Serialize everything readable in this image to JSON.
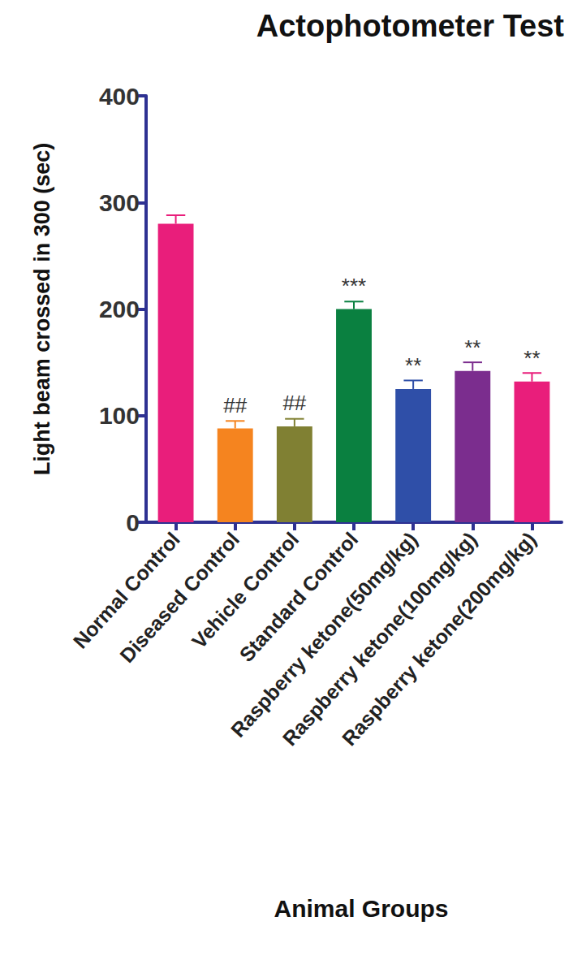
{
  "chart_data": {
    "type": "bar",
    "title": "Actophotometer Test",
    "x_label": "Animal Groups",
    "y_label": "Light beam crossed in 300 (sec)",
    "categories": [
      "Normal Control",
      "Diseased Control",
      "Vehicle Control",
      "Standard Control",
      "Raspberry ketone(50mg/kg)",
      "Raspberry ketone(100mg/kg)",
      "Raspberry ketone(200mg/kg)"
    ],
    "values": [
      280,
      88,
      90,
      200,
      125,
      142,
      132
    ],
    "errors": [
      8,
      7,
      7,
      7,
      8,
      8,
      8
    ],
    "annotations": [
      null,
      "##",
      "##",
      "***",
      "**",
      "**",
      "**"
    ],
    "colors": [
      "#e91e7b",
      "#f5841f",
      "#808033",
      "#0a8040",
      "#2f4fa8",
      "#7b2d8e",
      "#e91e7b"
    ],
    "ylim": [
      0,
      400
    ],
    "yticks": [
      0,
      100,
      200,
      300,
      400
    ],
    "grid": false
  }
}
